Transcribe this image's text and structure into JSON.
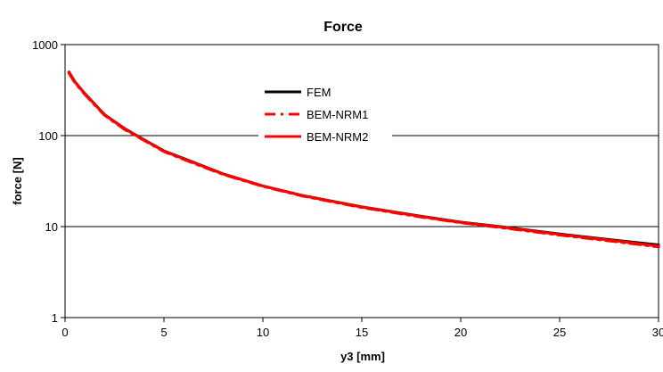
{
  "chart_data": {
    "type": "line",
    "title": "Force",
    "xlabel": "y3 [mm]",
    "ylabel": "force [N]",
    "xlim": [
      0,
      30
    ],
    "ylim": [
      1,
      1000
    ],
    "yscale": "log",
    "grid": "horizontal major gridlines",
    "legend_position": "upper-center",
    "x_ticks": [
      0,
      5,
      10,
      15,
      20,
      25,
      30
    ],
    "x_tick_labels": [
      "0",
      "5",
      "10",
      "15",
      "20",
      "25",
      "30"
    ],
    "y_ticks": [
      1,
      10,
      100,
      1000
    ],
    "y_tick_labels": [
      "1",
      "10",
      "100",
      "1000"
    ],
    "series": [
      {
        "name": "FEM",
        "color": "#000000",
        "style": "solid",
        "x": [
          0.2,
          0.5,
          1,
          2,
          3,
          4,
          5,
          6,
          8,
          10,
          12,
          15,
          18,
          20,
          22,
          25,
          28,
          30
        ],
        "y": [
          500,
          390,
          290,
          170,
          120,
          90,
          68,
          56,
          38,
          28,
          22,
          16.5,
          13,
          11.2,
          10,
          8.3,
          7,
          6.3
        ]
      },
      {
        "name": "BEM-NRM1",
        "color": "#ff0000",
        "style": "dashed",
        "x": [
          0.2,
          0.5,
          1,
          2,
          3,
          4,
          5,
          6,
          8,
          10,
          12,
          15,
          18,
          20,
          22,
          25,
          28,
          30
        ],
        "y": [
          490,
          385,
          285,
          168,
          118,
          89,
          67,
          55,
          37.5,
          27.8,
          21.8,
          16.3,
          12.8,
          11.1,
          9.8,
          8.1,
          6.8,
          6.0
        ]
      },
      {
        "name": "BEM-NRM2",
        "color": "#ff0000",
        "style": "solid",
        "x": [
          0.2,
          0.5,
          1,
          2,
          3,
          4,
          5,
          6,
          8,
          10,
          12,
          15,
          18,
          20,
          22,
          25,
          28,
          30
        ],
        "y": [
          495,
          388,
          288,
          169,
          119,
          89.5,
          67.5,
          55.5,
          37.8,
          27.9,
          21.9,
          16.4,
          12.9,
          11.1,
          9.9,
          8.2,
          6.9,
          6.1
        ]
      }
    ]
  }
}
